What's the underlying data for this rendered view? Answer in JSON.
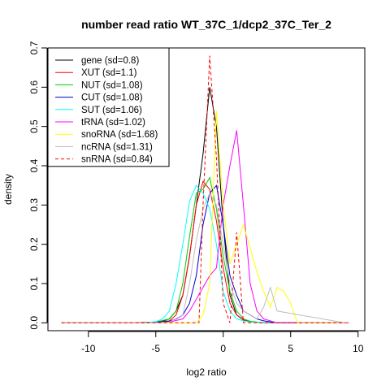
{
  "chart_data": {
    "type": "line",
    "title": "number read ratio WT_37C_1/dcp2_37C_Ter_2",
    "xlabel": "log2 ratio",
    "ylabel": "density",
    "xlim": [
      -13,
      10.5
    ],
    "ylim": [
      -0.02,
      0.7
    ],
    "xticks": [
      -10,
      -5,
      0,
      5,
      10
    ],
    "yticks": [
      0.0,
      0.1,
      0.2,
      0.3,
      0.4,
      0.5,
      0.6,
      0.7
    ],
    "legend_position": "top-left",
    "series": [
      {
        "name": "gene (sd=0.8)",
        "color": "#000000",
        "dash": false,
        "x": [
          -12,
          -7,
          -5,
          -4.5,
          -4,
          -3.5,
          -3,
          -2.5,
          -2,
          -1.5,
          -1,
          -0.5,
          0,
          0.5,
          1,
          1.5,
          2,
          2.5,
          3,
          4,
          9
        ],
        "y": [
          0,
          0,
          0.002,
          0.004,
          0.01,
          0.03,
          0.07,
          0.17,
          0.3,
          0.43,
          0.6,
          0.5,
          0.25,
          0.07,
          0.02,
          0.007,
          0.003,
          0.001,
          0,
          0,
          0
        ]
      },
      {
        "name": "XUT (sd=1.1)",
        "color": "#ff0000",
        "dash": false,
        "x": [
          -12,
          -6,
          -5,
          -4,
          -3.5,
          -3,
          -2.5,
          -2,
          -1.5,
          -1,
          -0.5,
          0,
          0.5,
          1,
          1.5,
          2,
          2.5,
          3,
          4,
          9.3
        ],
        "y": [
          0,
          0,
          0.002,
          0.005,
          0.02,
          0.07,
          0.17,
          0.3,
          0.36,
          0.34,
          0.26,
          0.14,
          0.05,
          0.02,
          0.008,
          0.003,
          0.001,
          0,
          0,
          0
        ]
      },
      {
        "name": "NUT (sd=1.08)",
        "color": "#00cd00",
        "dash": false,
        "x": [
          -12,
          -6,
          -5,
          -4,
          -3.5,
          -3,
          -2.5,
          -2,
          -1.5,
          -1,
          -0.5,
          0,
          0.5,
          1,
          1.5,
          2,
          2.5,
          3,
          4,
          9
        ],
        "y": [
          0,
          0,
          0.002,
          0.01,
          0.03,
          0.1,
          0.22,
          0.33,
          0.34,
          0.37,
          0.29,
          0.17,
          0.08,
          0.03,
          0.01,
          0.004,
          0.002,
          0,
          0,
          0
        ]
      },
      {
        "name": "CUT (sd=1.08)",
        "color": "#0000cd",
        "dash": false,
        "x": [
          -12,
          -6,
          -5,
          -4,
          -3.5,
          -3,
          -2.5,
          -2,
          -1.5,
          -1,
          -0.5,
          0,
          0.5,
          1,
          1.5,
          2,
          2.5,
          3,
          4,
          9
        ],
        "y": [
          0,
          0,
          0.002,
          0.004,
          0.01,
          0.02,
          0.05,
          0.12,
          0.25,
          0.33,
          0.35,
          0.25,
          0.12,
          0.07,
          0.03,
          0.02,
          0.01,
          0.005,
          0,
          0
        ]
      },
      {
        "name": "SUT (sd=1.06)",
        "color": "#00ffff",
        "dash": false,
        "x": [
          -12,
          -6,
          -5,
          -4.5,
          -4,
          -3.5,
          -3,
          -2.5,
          -2,
          -1.5,
          -1,
          -0.5,
          0,
          0.5,
          1,
          1.5,
          2,
          2.5,
          3,
          4,
          9
        ],
        "y": [
          0,
          0,
          0.003,
          0.01,
          0.03,
          0.1,
          0.2,
          0.31,
          0.35,
          0.33,
          0.29,
          0.2,
          0.08,
          0.03,
          0.01,
          0.005,
          0.002,
          0.001,
          0,
          0,
          0
        ]
      },
      {
        "name": "tRNA (sd=1.02)",
        "color": "#ff00ff",
        "dash": false,
        "x": [
          -12,
          -5,
          -4,
          -3,
          -2.5,
          -2,
          -1.5,
          -1,
          -0.5,
          0,
          0.5,
          1,
          1.5,
          2,
          2.5,
          3,
          4,
          9
        ],
        "y": [
          0,
          0,
          0.002,
          0.01,
          0.03,
          0.06,
          0.09,
          0.12,
          0.14,
          0.3,
          0.4,
          0.49,
          0.3,
          0.1,
          0.03,
          0.01,
          0,
          0
        ]
      },
      {
        "name": "snoRNA (sd=1.68)",
        "color": "#ffff00",
        "dash": false,
        "x": [
          -12,
          -2,
          -1.5,
          -1,
          -0.5,
          0,
          0.5,
          1,
          1.5,
          2,
          2.5,
          3,
          3.5,
          4,
          4.5,
          5,
          5.5,
          9
        ],
        "y": [
          0,
          0,
          0.02,
          0.1,
          0.54,
          0.3,
          0.15,
          0.2,
          0.25,
          0.19,
          0.13,
          0.08,
          0.04,
          0.09,
          0.08,
          0.05,
          0,
          0
        ]
      },
      {
        "name": "ncRNA (sd=1.31)",
        "color": "#bebebe",
        "dash": false,
        "x": [
          -12,
          -5,
          -4,
          -3,
          -2.5,
          -2,
          -1.5,
          -1,
          -0.5,
          0,
          0.5,
          1,
          1.5,
          2,
          2.5,
          3,
          3.5,
          4,
          9
        ],
        "y": [
          0,
          0,
          0.002,
          0.02,
          0.1,
          0.21,
          0.29,
          0.33,
          0.3,
          0.2,
          0.1,
          0.05,
          0.03,
          0.02,
          0.01,
          0.04,
          0.09,
          0.03,
          0
        ]
      },
      {
        "name": "snRNA (sd=0.84)",
        "color": "#ff0000",
        "dash": true,
        "x": [
          -12,
          -1.8,
          -1.5,
          -1,
          -0.5,
          0,
          0.5,
          1,
          1.5,
          2,
          9
        ],
        "y": [
          0,
          0,
          0.3,
          0.68,
          0.42,
          0.05,
          0,
          0.23,
          0,
          0,
          0
        ]
      }
    ]
  }
}
